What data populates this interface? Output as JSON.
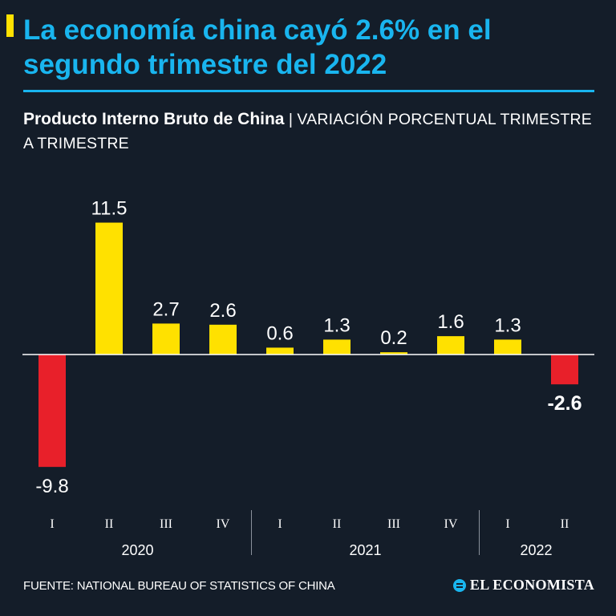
{
  "header": {
    "title": "La economía china cayó 2.6% en el segundo trimestre del 2022",
    "subtitle_main": "Producto Interno Bruto de China",
    "subtitle_sep": "|",
    "subtitle_unit": "VARIACIÓN PORCENTUAL TRIMESTRE A TRIMESTRE"
  },
  "colors": {
    "background": "#141d29",
    "accent_blue": "#19b5ef",
    "positive": "#ffe100",
    "negative": "#e8202a"
  },
  "chart_data": {
    "type": "bar",
    "title": "Producto Interno Bruto de China",
    "ylabel": "VARIACIÓN PORCENTUAL TRIMESTRE A TRIMESTRE",
    "xlabel": "",
    "categories": [
      "I",
      "II",
      "III",
      "IV",
      "I",
      "II",
      "III",
      "IV",
      "I",
      "II"
    ],
    "groups": [
      {
        "year": "2020",
        "quarters": 4
      },
      {
        "year": "2021",
        "quarters": 4
      },
      {
        "year": "2022",
        "quarters": 2
      }
    ],
    "values": [
      -9.8,
      11.5,
      2.7,
      2.6,
      0.6,
      1.3,
      0.2,
      1.6,
      1.3,
      -2.6
    ],
    "value_labels": [
      "-9.8",
      "11.5",
      "2.7",
      "2.6",
      "0.6",
      "1.3",
      "0.2",
      "1.6",
      "1.3",
      "-2.6"
    ],
    "ylim": [
      -9.8,
      11.5
    ],
    "grid": false,
    "highlight_last": true
  },
  "footer": {
    "source": "FUENTE: NATIONAL BUREAU OF STATISTICS OF CHINA",
    "brand": "EL ECONOMISTA"
  }
}
